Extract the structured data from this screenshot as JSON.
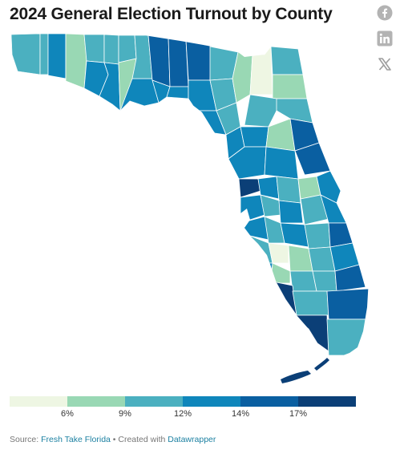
{
  "title": "2024 General Election Turnout by County",
  "share": {
    "facebook": "facebook-icon",
    "linkedin": "linkedin-icon",
    "x": "x-icon"
  },
  "colors": {
    "bins": [
      "#eef6e3",
      "#99d8b4",
      "#4bb0c0",
      "#0f86bb",
      "#0a5fa1",
      "#0b3f77"
    ],
    "link": "#1d81a2"
  },
  "legend": {
    "ticks": [
      "6%",
      "9%",
      "12%",
      "14%",
      "17%"
    ]
  },
  "footer": {
    "source_prefix": "Source: ",
    "source_link": "Fresh Take Florida",
    "separator": " • Created with ",
    "tool_link": "Datawrapper"
  }
}
